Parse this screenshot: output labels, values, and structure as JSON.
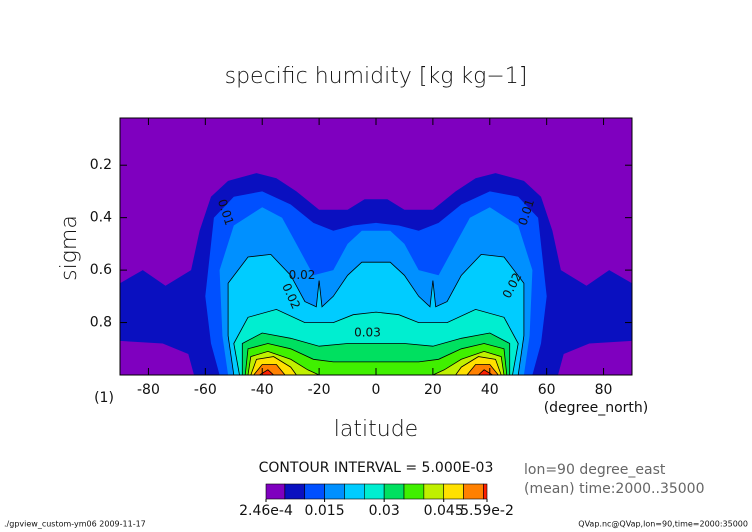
{
  "chart_data": {
    "type": "contour",
    "title": "specific humidity [kg kg−1]",
    "xlabel": "latitude",
    "xunit": "(degree_north)",
    "ylabel": "sigma",
    "yunit": "(1)",
    "xlim": [
      -90,
      90
    ],
    "xticks": [
      -80,
      -60,
      -40,
      -20,
      0,
      20,
      40,
      60,
      80
    ],
    "ylim": [
      0.02,
      1.0
    ],
    "yticks": [
      0.2,
      0.4,
      0.6,
      0.8
    ],
    "contour_interval": "CONTOUR INTERVAL = 5.000E-03",
    "info": [
      "lon=90 degree_east",
      "(mean) time:2000..35000"
    ],
    "contour_labels": [
      "0.01",
      "0.01",
      "0.02",
      "0.02",
      "0.02",
      "0.03"
    ],
    "colorbar": {
      "bounds": [
        0.000246,
        0.005,
        0.01,
        0.015,
        0.02,
        0.025,
        0.03,
        0.035,
        0.04,
        0.045,
        0.05,
        0.055,
        0.0559
      ],
      "colors": [
        "#7f00bf",
        "#0a10c0",
        "#0050ff",
        "#0090ff",
        "#00ccff",
        "#00eed0",
        "#00e060",
        "#40f000",
        "#c0f000",
        "#ffe000",
        "#ff8000",
        "#ff2000"
      ],
      "ticks": [
        {
          "value": 0.000246,
          "label": "2.46e-4"
        },
        0.015,
        0.03,
        0.045,
        {
          "value": 0.0559,
          "label": "5.59e-2"
        }
      ]
    },
    "footer_left": "./gpview_custom-ym06  2009-11-17",
    "footer_right": "QVap.nc@QVap,lon=90,time=2000:35000"
  }
}
